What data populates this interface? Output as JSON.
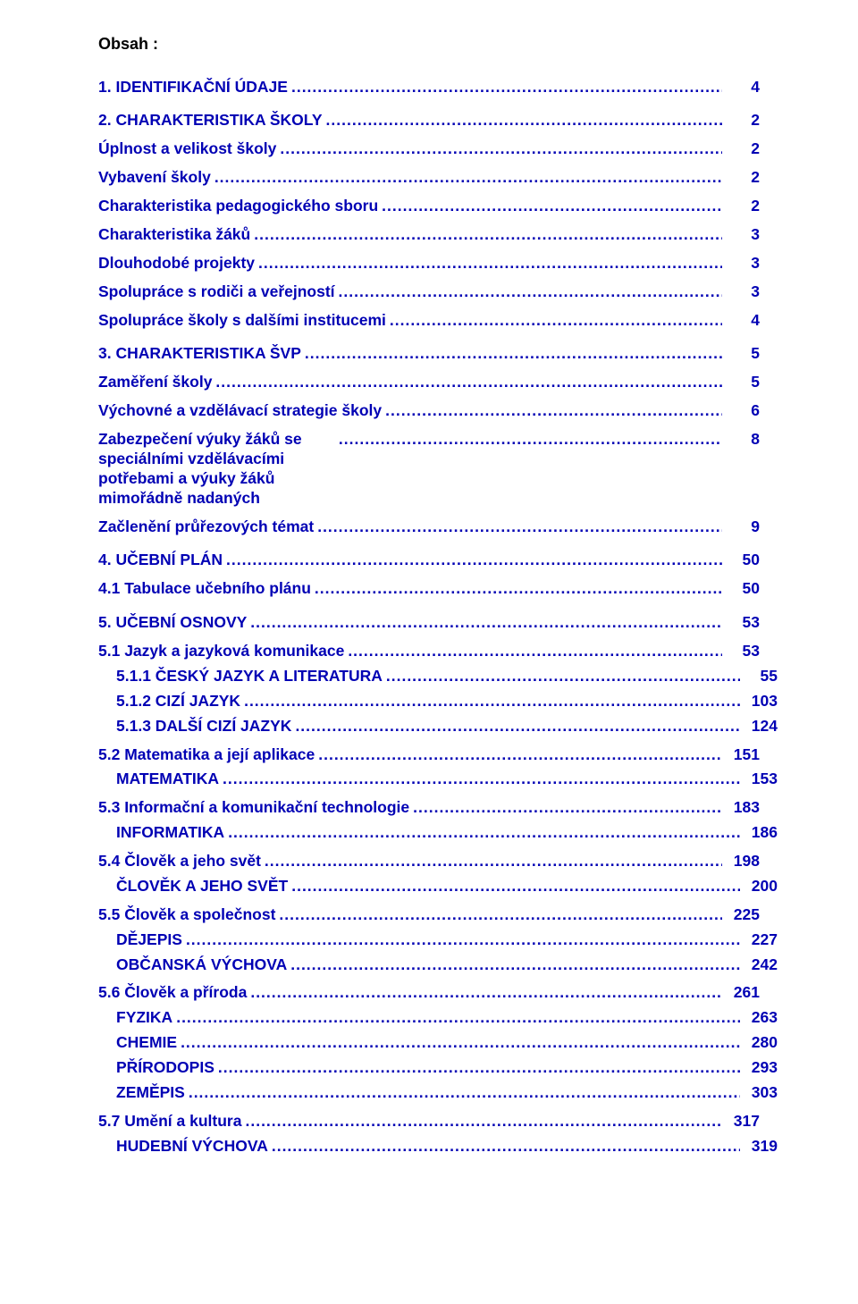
{
  "title": "Obsah :",
  "link_color": "#0000b4",
  "toc": [
    {
      "label": "1.   IDENTIFIKAČNÍ ÚDAJE",
      "page": "4",
      "indent": 0,
      "section": true,
      "gap_before": "none"
    },
    {
      "label": "2.   CHARAKTERISTIKA ŠKOLY",
      "page": "2",
      "indent": 0,
      "section": true,
      "gap_before": "section"
    },
    {
      "label": "Úplnost a velikost školy",
      "page": "2",
      "indent": 0,
      "gap_before": "small"
    },
    {
      "label": "Vybavení školy",
      "page": "2",
      "indent": 0,
      "gap_before": "small"
    },
    {
      "label": "Charakteristika pedagogického sboru",
      "page": "2",
      "indent": 0,
      "gap_before": "small"
    },
    {
      "label": "Charakteristika žáků",
      "page": "3",
      "indent": 0,
      "gap_before": "small"
    },
    {
      "label": "Dlouhodobé projekty",
      "page": "3",
      "indent": 0,
      "gap_before": "small"
    },
    {
      "label": "Spolupráce s rodiči a veřejností",
      "page": "3",
      "indent": 0,
      "gap_before": "small"
    },
    {
      "label": "Spolupráce školy s dalšími institucemi",
      "page": "4",
      "indent": 0,
      "gap_before": "small"
    },
    {
      "label": "3.   CHARAKTERISTIKA ŠVP",
      "page": "5",
      "indent": 0,
      "section": true,
      "gap_before": "section"
    },
    {
      "label": "Zaměření školy",
      "page": "5",
      "indent": 0,
      "gap_before": "small"
    },
    {
      "label": "Výchovné a vzdělávací strategie školy",
      "page": "6",
      "indent": 0,
      "gap_before": "small"
    },
    {
      "label": "Zabezpečení výuky žáků se speciálními vzdělávacími potřebami a výuky žáků mimořádně nadaných",
      "page": "8",
      "indent": 0,
      "gap_before": "small",
      "two_line": true
    },
    {
      "label": "Začlenění průřezových témat",
      "page": "9",
      "indent": 0,
      "gap_before": "small"
    },
    {
      "label": "4.   UČEBNÍ PLÁN",
      "page": "50",
      "indent": 0,
      "section": true,
      "gap_before": "section"
    },
    {
      "label": "4.1 Tabulace učebního plánu",
      "page": "50",
      "indent": 0,
      "gap_before": "small"
    },
    {
      "label": "5.   UČEBNÍ OSNOVY",
      "page": "53",
      "indent": 0,
      "section": true,
      "gap_before": "section"
    },
    {
      "label": "5.1 Jazyk a jazyková komunikace",
      "page": "53",
      "indent": 0,
      "gap_before": "small"
    },
    {
      "label": "5.1.1 ČESKÝ JAZYK A LITERATURA",
      "page": "55",
      "indent": 1
    },
    {
      "label": "5.1.2 CIZÍ JAZYK",
      "page": "103",
      "indent": 1
    },
    {
      "label": "5.1.3 DALŠÍ CIZÍ JAZYK",
      "page": "124",
      "indent": 1
    },
    {
      "label": "5.2 Matematika a její aplikace",
      "page": "151",
      "indent": 0,
      "gap_before": "small"
    },
    {
      "label": "MATEMATIKA",
      "page": "153",
      "indent": 1
    },
    {
      "label": "5.3 Informační a komunikační technologie",
      "page": "183",
      "indent": 0,
      "gap_before": "small"
    },
    {
      "label": "INFORMATIKA",
      "page": "186",
      "indent": 1
    },
    {
      "label": "5.4 Člověk a jeho svět",
      "page": "198",
      "indent": 0,
      "gap_before": "small"
    },
    {
      "label": "ČLOVĚK A JEHO SVĚT",
      "page": "200",
      "indent": 1
    },
    {
      "label": "5.5     Člověk a společnost",
      "page": "225",
      "indent": 0,
      "gap_before": "small"
    },
    {
      "label": "DĚJEPIS",
      "page": "227",
      "indent": 1
    },
    {
      "label": "OBČANSKÁ VÝCHOVA",
      "page": "242",
      "indent": 1
    },
    {
      "label": "5.6     Člověk a příroda",
      "page": "261",
      "indent": 0,
      "gap_before": "small"
    },
    {
      "label": "FYZIKA",
      "page": "263",
      "indent": 1
    },
    {
      "label": "CHEMIE",
      "page": "280",
      "indent": 1
    },
    {
      "label": "PŘÍRODOPIS",
      "page": "293",
      "indent": 1
    },
    {
      "label": "ZEMĚPIS",
      "page": "303",
      "indent": 1
    },
    {
      "label": "5.7     Umění a kultura",
      "page": "317",
      "indent": 0,
      "gap_before": "small"
    },
    {
      "label": "HUDEBNÍ VÝCHOVA",
      "page": "319",
      "indent": 1
    }
  ]
}
